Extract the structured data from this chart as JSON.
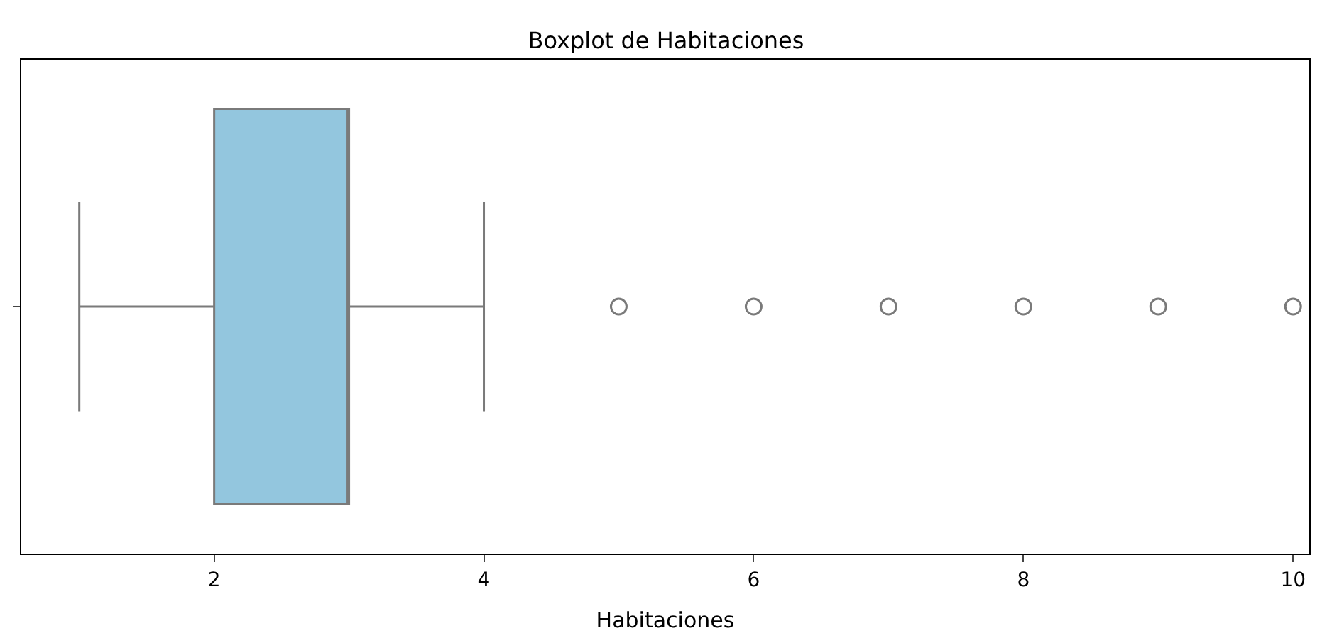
{
  "chart_data": {
    "type": "box",
    "title": "Boxplot de Habitaciones",
    "xlabel": "Habitaciones",
    "orientation": "horizontal",
    "categories": [
      null
    ],
    "color": "#93c6de",
    "boxes": [
      {
        "low": 1,
        "q1": 2,
        "median": 3,
        "q3": 3,
        "high": 4,
        "outliers": [
          5,
          6,
          7,
          8,
          9,
          10
        ]
      }
    ],
    "xlim": [
      0.57,
      10.12
    ],
    "xticks": [
      2,
      4,
      6,
      8,
      10
    ]
  }
}
